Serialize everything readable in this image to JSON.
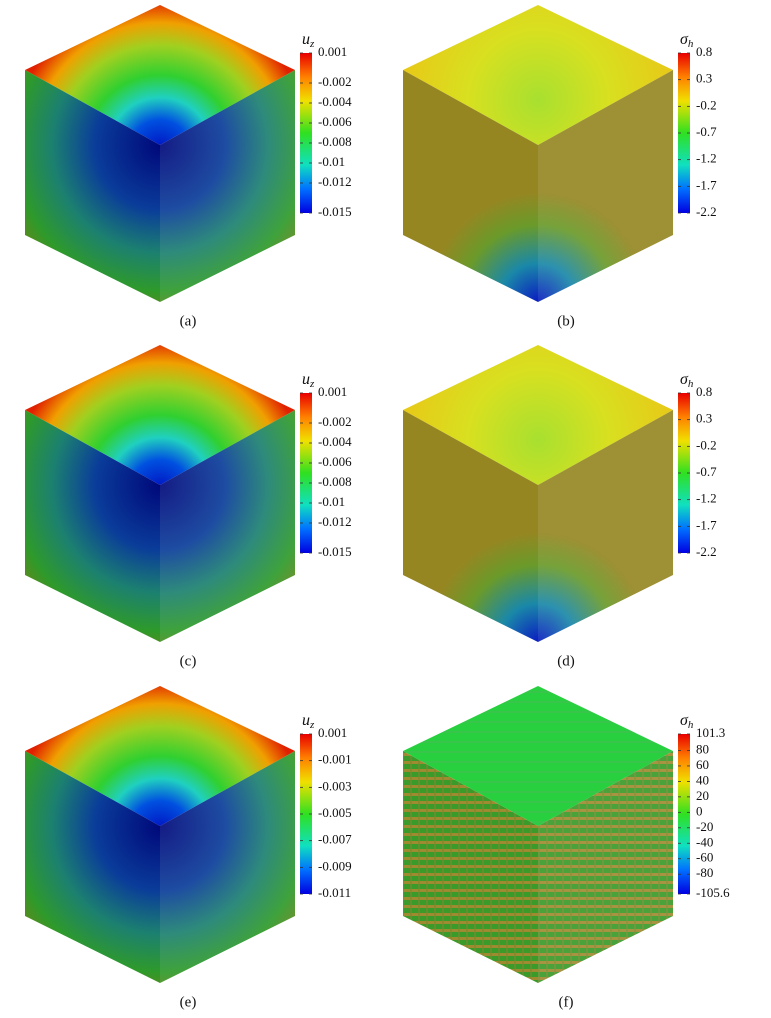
{
  "panels": [
    {
      "caption": "(a)",
      "colorbar": {
        "symbol": "u",
        "subscript": "z",
        "ticks": [
          "0.001",
          "-0.002",
          "-0.004",
          "-0.006",
          "-0.008",
          "-0.01",
          "-0.012",
          "-0.015"
        ]
      }
    },
    {
      "caption": "(b)",
      "colorbar": {
        "symbol": "σ",
        "subscript": "h",
        "ticks": [
          "0.8",
          "0.3",
          "-0.2",
          "-0.7",
          "-1.2",
          "-1.7",
          "-2.2"
        ]
      }
    },
    {
      "caption": "(c)",
      "colorbar": {
        "symbol": "u",
        "subscript": "z",
        "ticks": [
          "0.001",
          "-0.002",
          "-0.004",
          "-0.006",
          "-0.008",
          "-0.01",
          "-0.012",
          "-0.015"
        ]
      }
    },
    {
      "caption": "(d)",
      "colorbar": {
        "symbol": "σ",
        "subscript": "h",
        "ticks": [
          "0.8",
          "0.3",
          "-0.2",
          "-0.7",
          "-1.2",
          "-1.7",
          "-2.2"
        ]
      }
    },
    {
      "caption": "(e)",
      "colorbar": {
        "symbol": "u",
        "subscript": "z",
        "ticks": [
          "0.001",
          "-0.001",
          "-0.003",
          "-0.005",
          "-0.007",
          "-0.009",
          "-0.011"
        ]
      }
    },
    {
      "caption": "(f)",
      "colorbar": {
        "symbol": "σ",
        "subscript": "h",
        "ticks": [
          "101.3",
          "80",
          "60",
          "40",
          "20",
          "0",
          "-20",
          "-40",
          "-60",
          "-80",
          "-105.6"
        ]
      }
    }
  ]
}
